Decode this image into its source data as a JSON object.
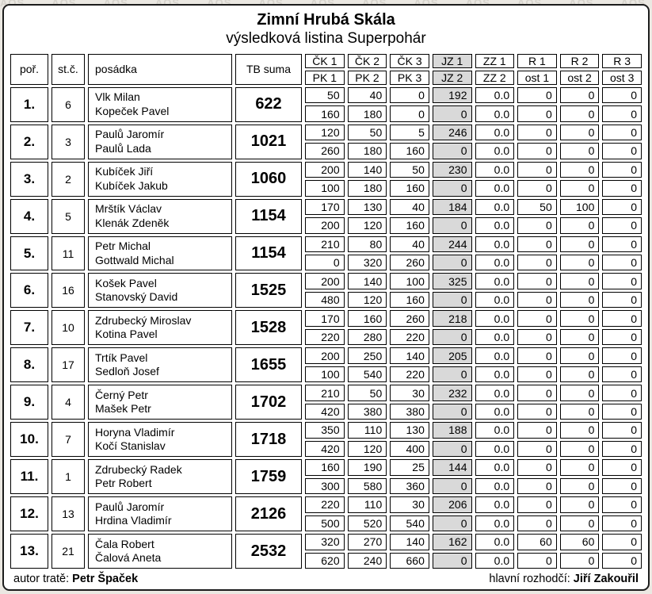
{
  "title": "Zimní Hrubá Skála",
  "subtitle": "výsledková listina Superpohár",
  "watermark": "AOS",
  "colors": {
    "highlight_column": "#d9d9d9",
    "cell_border": "#000000",
    "panel_background": "#ffffff",
    "page_background": "#ebe8e2"
  },
  "table": {
    "headers": {
      "rank": "poř.",
      "start_number": "st.č.",
      "crew": "posádka",
      "total": "TB suma",
      "score_row1": [
        "ČK 1",
        "ČK 2",
        "ČK 3",
        "JZ 1",
        "ZZ 1",
        "R 1",
        "R 2",
        "R 3"
      ],
      "score_row2": [
        "PK 1",
        "PK 2",
        "PK 3",
        "JZ 2",
        "ZZ 2",
        "ost 1",
        "ost 2",
        "ost 3"
      ],
      "highlight_col_index": 3
    },
    "teams": [
      {
        "rank": "1.",
        "start_number": "6",
        "crew": [
          "Vlk Milan",
          "Kopeček Pavel"
        ],
        "total": "622",
        "scores1": [
          "50",
          "40",
          "0",
          "192",
          "0.0",
          "0",
          "0",
          "0"
        ],
        "scores2": [
          "160",
          "180",
          "0",
          "0",
          "0.0",
          "0",
          "0",
          "0"
        ]
      },
      {
        "rank": "2.",
        "start_number": "3",
        "crew": [
          "Paulů Jaromír",
          "Paulů Lada"
        ],
        "total": "1021",
        "scores1": [
          "120",
          "50",
          "5",
          "246",
          "0.0",
          "0",
          "0",
          "0"
        ],
        "scores2": [
          "260",
          "180",
          "160",
          "0",
          "0.0",
          "0",
          "0",
          "0"
        ]
      },
      {
        "rank": "3.",
        "start_number": "2",
        "crew": [
          "Kubíček Jiří",
          "Kubíček Jakub"
        ],
        "total": "1060",
        "scores1": [
          "200",
          "140",
          "50",
          "230",
          "0.0",
          "0",
          "0",
          "0"
        ],
        "scores2": [
          "100",
          "180",
          "160",
          "0",
          "0.0",
          "0",
          "0",
          "0"
        ]
      },
      {
        "rank": "4.",
        "start_number": "5",
        "crew": [
          "Mrštík Václav",
          "Klenák Zdeněk"
        ],
        "total": "1154",
        "scores1": [
          "170",
          "130",
          "40",
          "184",
          "0.0",
          "50",
          "100",
          "0"
        ],
        "scores2": [
          "200",
          "120",
          "160",
          "0",
          "0.0",
          "0",
          "0",
          "0"
        ]
      },
      {
        "rank": "5.",
        "start_number": "11",
        "crew": [
          "Petr Michal",
          "Gottwald Michal"
        ],
        "total": "1154",
        "scores1": [
          "210",
          "80",
          "40",
          "244",
          "0.0",
          "0",
          "0",
          "0"
        ],
        "scores2": [
          "0",
          "320",
          "260",
          "0",
          "0.0",
          "0",
          "0",
          "0"
        ]
      },
      {
        "rank": "6.",
        "start_number": "16",
        "crew": [
          "Košek Pavel",
          "Stanovský David"
        ],
        "total": "1525",
        "scores1": [
          "200",
          "140",
          "100",
          "325",
          "0.0",
          "0",
          "0",
          "0"
        ],
        "scores2": [
          "480",
          "120",
          "160",
          "0",
          "0.0",
          "0",
          "0",
          "0"
        ]
      },
      {
        "rank": "7.",
        "start_number": "10",
        "crew": [
          "Zdrubecký Miroslav",
          "Kotina Pavel"
        ],
        "total": "1528",
        "scores1": [
          "170",
          "160",
          "260",
          "218",
          "0.0",
          "0",
          "0",
          "0"
        ],
        "scores2": [
          "220",
          "280",
          "220",
          "0",
          "0.0",
          "0",
          "0",
          "0"
        ]
      },
      {
        "rank": "8.",
        "start_number": "17",
        "crew": [
          "Trtík Pavel",
          "Sedloň Josef"
        ],
        "total": "1655",
        "scores1": [
          "200",
          "250",
          "140",
          "205",
          "0.0",
          "0",
          "0",
          "0"
        ],
        "scores2": [
          "100",
          "540",
          "220",
          "0",
          "0.0",
          "0",
          "0",
          "0"
        ]
      },
      {
        "rank": "9.",
        "start_number": "4",
        "crew": [
          "Černý Petr",
          "Mašek Petr"
        ],
        "total": "1702",
        "scores1": [
          "210",
          "50",
          "30",
          "232",
          "0.0",
          "0",
          "0",
          "0"
        ],
        "scores2": [
          "420",
          "380",
          "380",
          "0",
          "0.0",
          "0",
          "0",
          "0"
        ]
      },
      {
        "rank": "10.",
        "start_number": "7",
        "crew": [
          "Horyna Vladimír",
          "Kočí Stanislav"
        ],
        "total": "1718",
        "scores1": [
          "350",
          "110",
          "130",
          "188",
          "0.0",
          "0",
          "0",
          "0"
        ],
        "scores2": [
          "420",
          "120",
          "400",
          "0",
          "0.0",
          "0",
          "0",
          "0"
        ]
      },
      {
        "rank": "11.",
        "start_number": "1",
        "crew": [
          "Zdrubecký Radek",
          "Petr Robert"
        ],
        "total": "1759",
        "scores1": [
          "160",
          "190",
          "25",
          "144",
          "0.0",
          "0",
          "0",
          "0"
        ],
        "scores2": [
          "300",
          "580",
          "360",
          "0",
          "0.0",
          "0",
          "0",
          "0"
        ]
      },
      {
        "rank": "12.",
        "start_number": "13",
        "crew": [
          "Paulů Jaromír",
          "Hrdina Vladimír"
        ],
        "total": "2126",
        "scores1": [
          "220",
          "110",
          "30",
          "206",
          "0.0",
          "0",
          "0",
          "0"
        ],
        "scores2": [
          "500",
          "520",
          "540",
          "0",
          "0.0",
          "0",
          "0",
          "0"
        ]
      },
      {
        "rank": "13.",
        "start_number": "21",
        "crew": [
          "Čala Robert",
          "Čalová Aneta"
        ],
        "total": "2532",
        "scores1": [
          "320",
          "270",
          "140",
          "162",
          "0.0",
          "60",
          "60",
          "0"
        ],
        "scores2": [
          "620",
          "240",
          "660",
          "0",
          "0.0",
          "0",
          "0",
          "0"
        ]
      }
    ]
  },
  "footer": {
    "author_label": "autor tratě:",
    "author_name": "Petr Špaček",
    "referee_label": "hlavní rozhodčí:",
    "referee_name": "Jiří Zakouřil"
  }
}
